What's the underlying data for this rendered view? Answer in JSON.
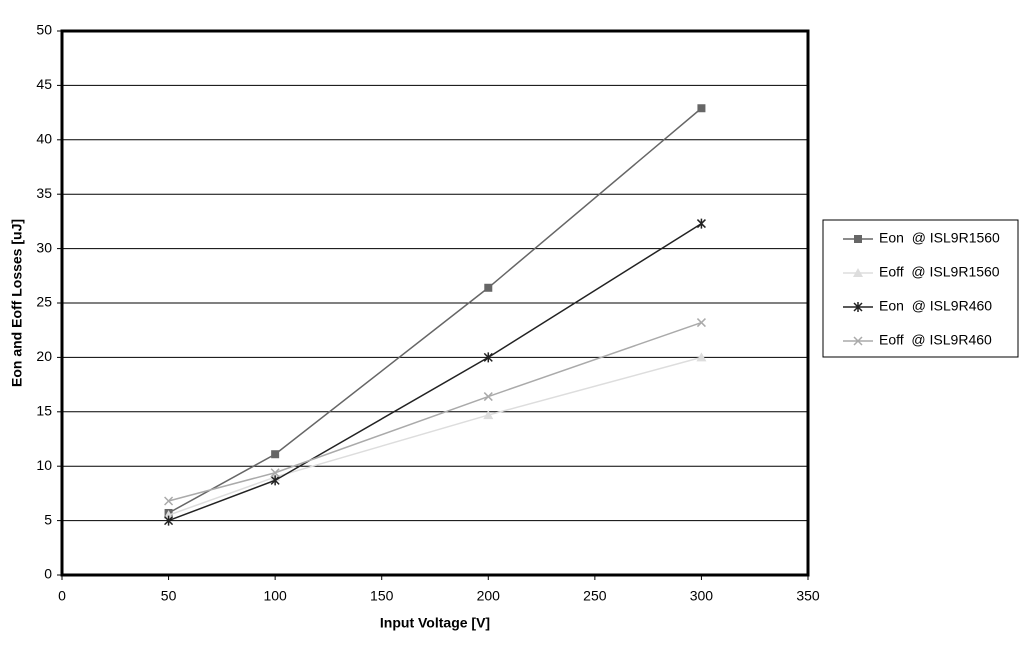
{
  "chart_data": {
    "type": "line",
    "x_label": "Input Voltage [V]",
    "y_label": "Eon and Eoff Losses [uJ]",
    "x": [
      50,
      100,
      200,
      300
    ],
    "series": [
      {
        "name": "Eon  @ ISL9R1560",
        "color": "#666666",
        "marker": "square",
        "values": [
          5.7,
          11.1,
          26.4,
          42.9
        ]
      },
      {
        "name": "Eoff  @ ISL9R1560",
        "color": "#dddddd",
        "marker": "triangle",
        "values": [
          5.5,
          9.0,
          14.7,
          20.0
        ]
      },
      {
        "name": "Eon  @ ISL9R460",
        "color": "#222222",
        "marker": "star",
        "values": [
          5.0,
          8.7,
          20.0,
          32.3
        ]
      },
      {
        "name": "Eoff  @ ISL9R460",
        "color": "#aaaaaa",
        "marker": "x",
        "values": [
          6.8,
          9.4,
          16.4,
          23.2
        ]
      }
    ],
    "xlim": [
      0,
      350
    ],
    "xticks": [
      0,
      50,
      100,
      150,
      200,
      250,
      300,
      350
    ],
    "ylim": [
      0,
      50
    ],
    "yticks": [
      0,
      5,
      10,
      15,
      20,
      25,
      30,
      35,
      40,
      45,
      50
    ],
    "grid": true,
    "legend": "right"
  }
}
